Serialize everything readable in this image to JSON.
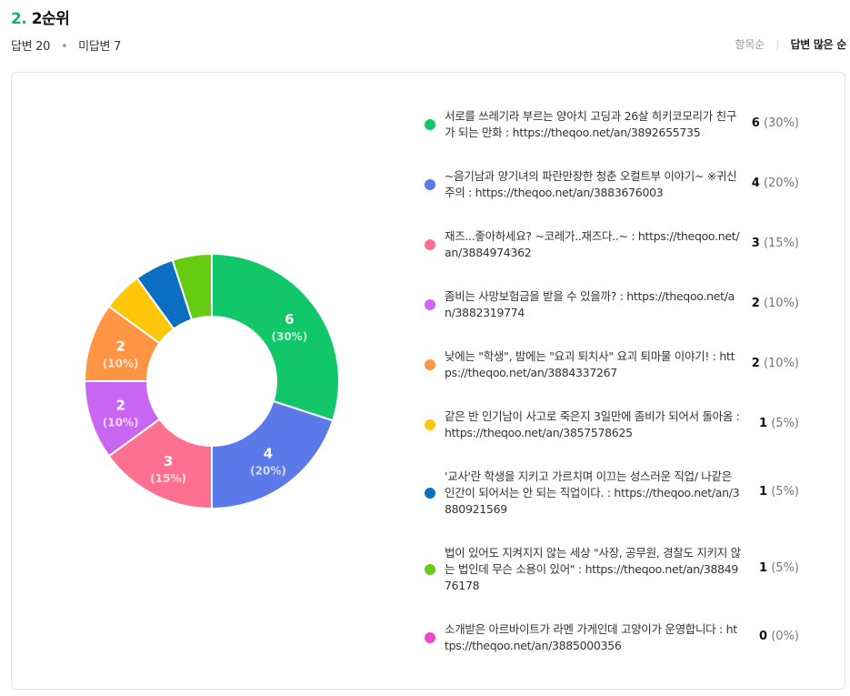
{
  "question": {
    "number": "2.",
    "title": "2순위"
  },
  "stats": {
    "answered": "답변 20",
    "unanswered": "미답변 7"
  },
  "sort": {
    "by_item": "항목순",
    "by_answers": "답변 많은 순"
  },
  "chart_data": {
    "type": "pie",
    "variant": "donut",
    "items": [
      {
        "label": "서로를 쓰레기라 부르는 양아치 고딩과 26살 히키코모리가 친구가 되는 만화 : https://theqoo.net/an/3892655735",
        "value": 6,
        "percent": "(30%)",
        "color": "#12c76a"
      },
      {
        "label": "~음기남과 양기녀의 파란만장한 청춘 오컬트부 이야기~ ※귀신주의 : https://theqoo.net/an/3883676003",
        "value": 4,
        "percent": "(20%)",
        "color": "#5b79e8"
      },
      {
        "label": "재즈...좋아하세요? ~코레가..재즈다..~ : https://theqoo.net/an/3884974362",
        "value": 3,
        "percent": "(15%)",
        "color": "#ff6f8f"
      },
      {
        "label": "좀비는 사망보험금을 받을 수 있을까? : https://theqoo.net/an/3882319774",
        "value": 2,
        "percent": "(10%)",
        "color": "#c966f2"
      },
      {
        "label": "낮에는 \"학생\", 밤에는 \"요괴 퇴치사\" 요괴 퇴마물 이야기! : https://theqoo.net/an/3884337267",
        "value": 2,
        "percent": "(10%)",
        "color": "#ff9444"
      },
      {
        "label": "같은 반 인기남이 사고로 죽은지 3일만에 좀비가 되어서 돌아옴 : https://theqoo.net/an/3857578625",
        "value": 1,
        "percent": "(5%)",
        "color": "#ffc60a"
      },
      {
        "label": "'교사'란 학생을 지키고 가르치며 이끄는 성스러운 직업/ 나같은 인간이 되어서는 안 되는 직업이다. : https://theqoo.net/an/3880921569",
        "value": 1,
        "percent": "(5%)",
        "color": "#0a6fc2"
      },
      {
        "label": "법이 있어도 지켜지지 않는 세상 \"사장, 공무원, 경찰도 지키지 않는 법인데 무슨 소용이 있어\" : https://theqoo.net/an/3884976178",
        "value": 1,
        "percent": "(5%)",
        "color": "#66cc12"
      },
      {
        "label": "소개받은 아르바이트가 라멘 가게인데 고양이가 운영합니다 : https://theqoo.net/an/3885000356",
        "value": 0,
        "percent": "(0%)",
        "color": "#f049c4"
      }
    ]
  }
}
